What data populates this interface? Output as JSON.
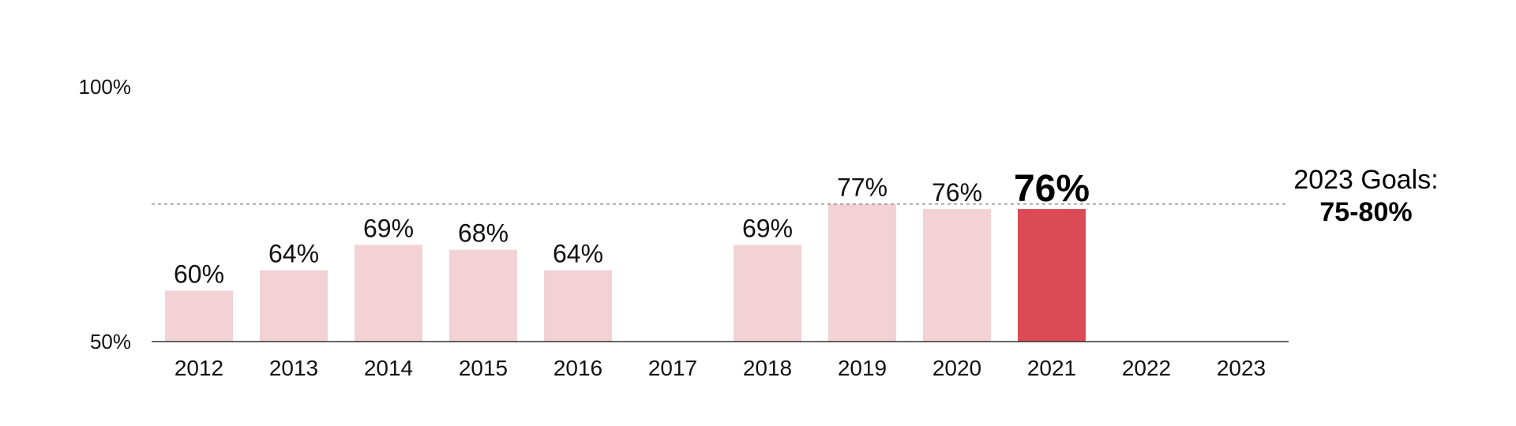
{
  "chart_data": {
    "type": "bar",
    "categories": [
      "2012",
      "2013",
      "2014",
      "2015",
      "2016",
      "2017",
      "2018",
      "2019",
      "2020",
      "2021",
      "2022",
      "2023"
    ],
    "values": [
      60,
      64,
      69,
      68,
      64,
      null,
      69,
      77,
      76,
      76,
      null,
      null
    ],
    "value_labels": [
      "60%",
      "64%",
      "69%",
      "68%",
      "64%",
      "",
      "69%",
      "77%",
      "76%",
      "76%",
      "",
      ""
    ],
    "highlight_index": 9,
    "ylim": [
      50,
      100
    ],
    "y_ticks": [
      50,
      100
    ],
    "y_tick_labels": [
      "50%",
      "100%"
    ],
    "goal_line_value": 77,
    "goal_label_line1": "2023 Goals:",
    "goal_label_line2": "75-80%",
    "grid": false,
    "colors": {
      "bar": "#f2d2d5",
      "highlight": "#db4a55",
      "axis": "#333333",
      "goal_line": "#888888",
      "text": "#111111"
    }
  }
}
